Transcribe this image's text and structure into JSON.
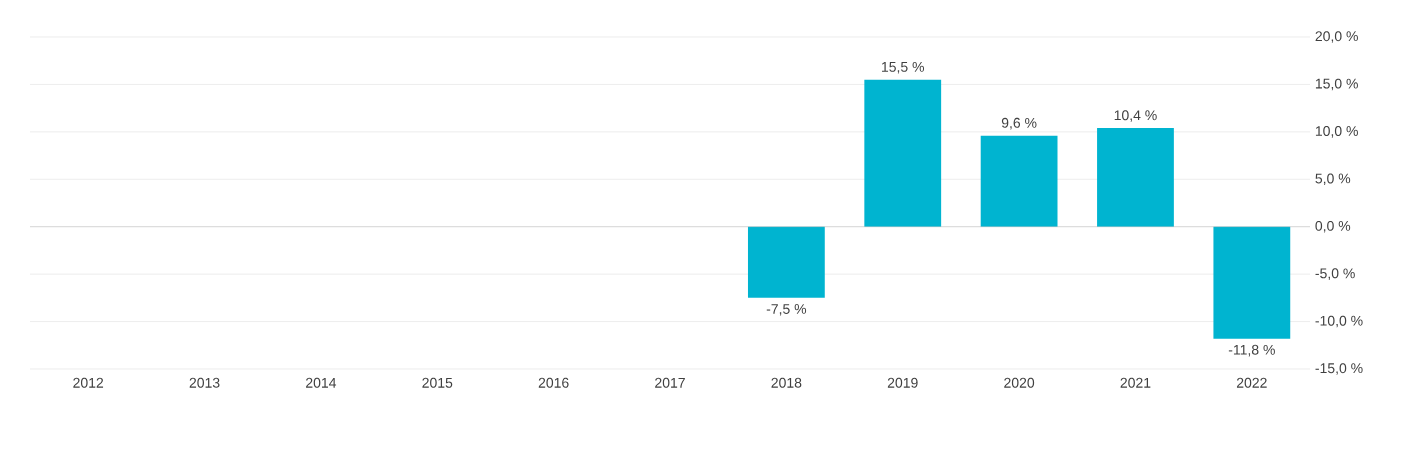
{
  "chart_data": {
    "type": "bar",
    "categories": [
      "2012",
      "2013",
      "2014",
      "2015",
      "2016",
      "2017",
      "2018",
      "2019",
      "2020",
      "2021",
      "2022"
    ],
    "values": [
      null,
      null,
      null,
      null,
      null,
      null,
      -7.5,
      15.5,
      9.6,
      10.4,
      -11.8
    ],
    "value_labels": [
      null,
      null,
      null,
      null,
      null,
      null,
      "-7,5 %",
      "15,5 %",
      "9,6 %",
      "10,4 %",
      "-11,8 %"
    ],
    "color": "#00b4d0",
    "ylim": [
      -15,
      20
    ],
    "yticks": [
      {
        "value": -15,
        "label": "-15,0 %"
      },
      {
        "value": -10,
        "label": "-10,0 %"
      },
      {
        "value": -5,
        "label": "-5,0 %"
      },
      {
        "value": 0,
        "label": "0,0 %"
      },
      {
        "value": 5,
        "label": "5,0 %"
      },
      {
        "value": 10,
        "label": "10,0 %"
      },
      {
        "value": 15,
        "label": "15,0 %"
      },
      {
        "value": 20,
        "label": "20,0 %"
      }
    ],
    "grid": "y"
  }
}
